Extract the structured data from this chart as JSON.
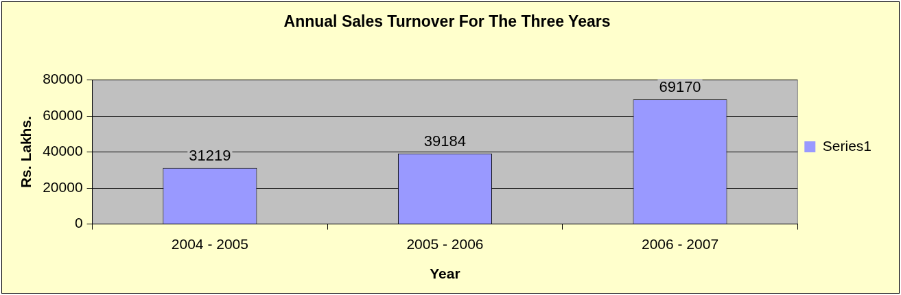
{
  "chart_data": {
    "type": "bar",
    "title": "Annual Sales Turnover For The Three Years",
    "xlabel": "Year",
    "ylabel": "Rs. Lakhs.",
    "categories": [
      "2004 - 2005",
      "2005 - 2006",
      "2006 - 2007"
    ],
    "series": [
      {
        "name": "Series1",
        "color": "#9999ff",
        "values": [
          31219,
          39184,
          69170
        ]
      }
    ],
    "ylim": [
      0,
      80000
    ],
    "yticks": [
      0,
      20000,
      40000,
      60000,
      80000
    ],
    "grid": "y",
    "legend": "right",
    "data_labels": true
  }
}
